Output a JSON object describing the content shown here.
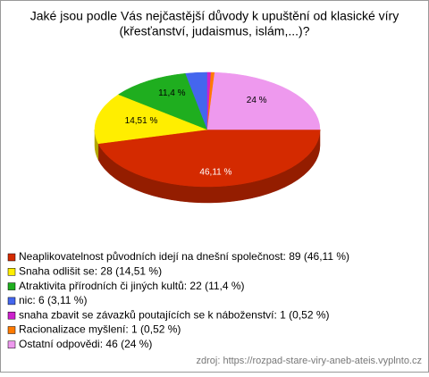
{
  "chart_data": {
    "type": "pie",
    "title": [
      "Jaké jsou podle Vás nejčastější důvody k upuštění od klasické víry",
      "(křesťanství, judaismus, islám,...)?"
    ],
    "categories": [
      "Neaplikovatelnost původních idejí na dnešní společnost: 89 (46,11 %)",
      "Snaha odlišit se: 28 (14,51 %)",
      "Atraktivita přírodních či jiných kultů: 22 (11,4 %)",
      "nic: 6 (3,11 %)",
      "snaha zbavit se závazků poutajících se k náboženství: 1 (0,52 %)",
      "Racionalizace myšlení: 1 (0,52 %)",
      "Ostatní odpovědi: 46 (24 %)"
    ],
    "values": [
      46.11,
      14.51,
      11.4,
      3.11,
      0.52,
      0.52,
      24
    ],
    "value_labels": [
      "46,11 %",
      "14,51 %",
      "11,4 %",
      null,
      null,
      null,
      "24 %"
    ],
    "colors": [
      "#d42a00",
      "#ffee00",
      "#1fae1f",
      "#4466ee",
      "#cc22cc",
      "#ff7a00",
      "#ee99ee"
    ],
    "source": "zdroj: https://rozpad-stare-viry-aneb-ateis.vyplnto.cz"
  }
}
